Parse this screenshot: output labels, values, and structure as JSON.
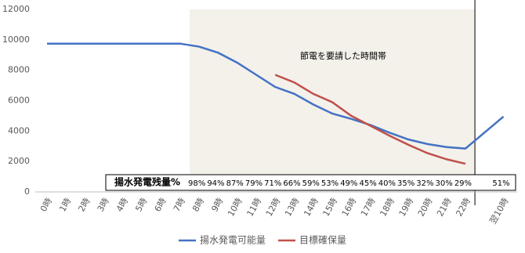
{
  "chart_data": {
    "type": "line",
    "categories": [
      "0時",
      "1時",
      "2時",
      "3時",
      "4時",
      "5時",
      "6時",
      "7時",
      "8時",
      "9時",
      "10時",
      "11時",
      "12時",
      "13時",
      "14時",
      "15時",
      "16時",
      "17時",
      "18時",
      "19時",
      "20時",
      "21時",
      "22時",
      "翌10時"
    ],
    "series": [
      {
        "name": "揚水発電可能量",
        "color": "#4472c4",
        "values": [
          9750,
          9750,
          9750,
          9750,
          9750,
          9750,
          9750,
          9750,
          9550,
          9150,
          8500,
          7700,
          6900,
          6450,
          5750,
          5150,
          4800,
          4400,
          3900,
          3450,
          3150,
          2950,
          2850,
          4950
        ]
      },
      {
        "name": "目標確保量",
        "color": "#c0504d",
        "values": [
          null,
          null,
          null,
          null,
          null,
          null,
          null,
          null,
          null,
          null,
          null,
          null,
          7700,
          7200,
          6450,
          5900,
          5000,
          4350,
          3700,
          3100,
          2550,
          2150,
          1850,
          null
        ]
      }
    ],
    "ylim": [
      0,
      12000
    ],
    "yticks": [
      0,
      2000,
      4000,
      6000,
      8000,
      10000,
      12000
    ],
    "grid": false,
    "annotation": "節電を要請した時間帯",
    "table": {
      "label": "揚水発電残量%",
      "values": [
        null,
        null,
        null,
        null,
        null,
        null,
        null,
        null,
        98,
        94,
        87,
        79,
        71,
        66,
        59,
        53,
        49,
        45,
        40,
        35,
        32,
        30,
        29,
        51
      ],
      "value_labels": [
        null,
        null,
        null,
        null,
        null,
        null,
        null,
        null,
        "98%",
        "94%",
        "87%",
        "79%",
        "71%",
        "66%",
        "59%",
        "53%",
        "49%",
        "45%",
        "40%",
        "35%",
        "32%",
        "30%",
        "29%",
        "51%"
      ]
    },
    "legend": "bottom"
  }
}
